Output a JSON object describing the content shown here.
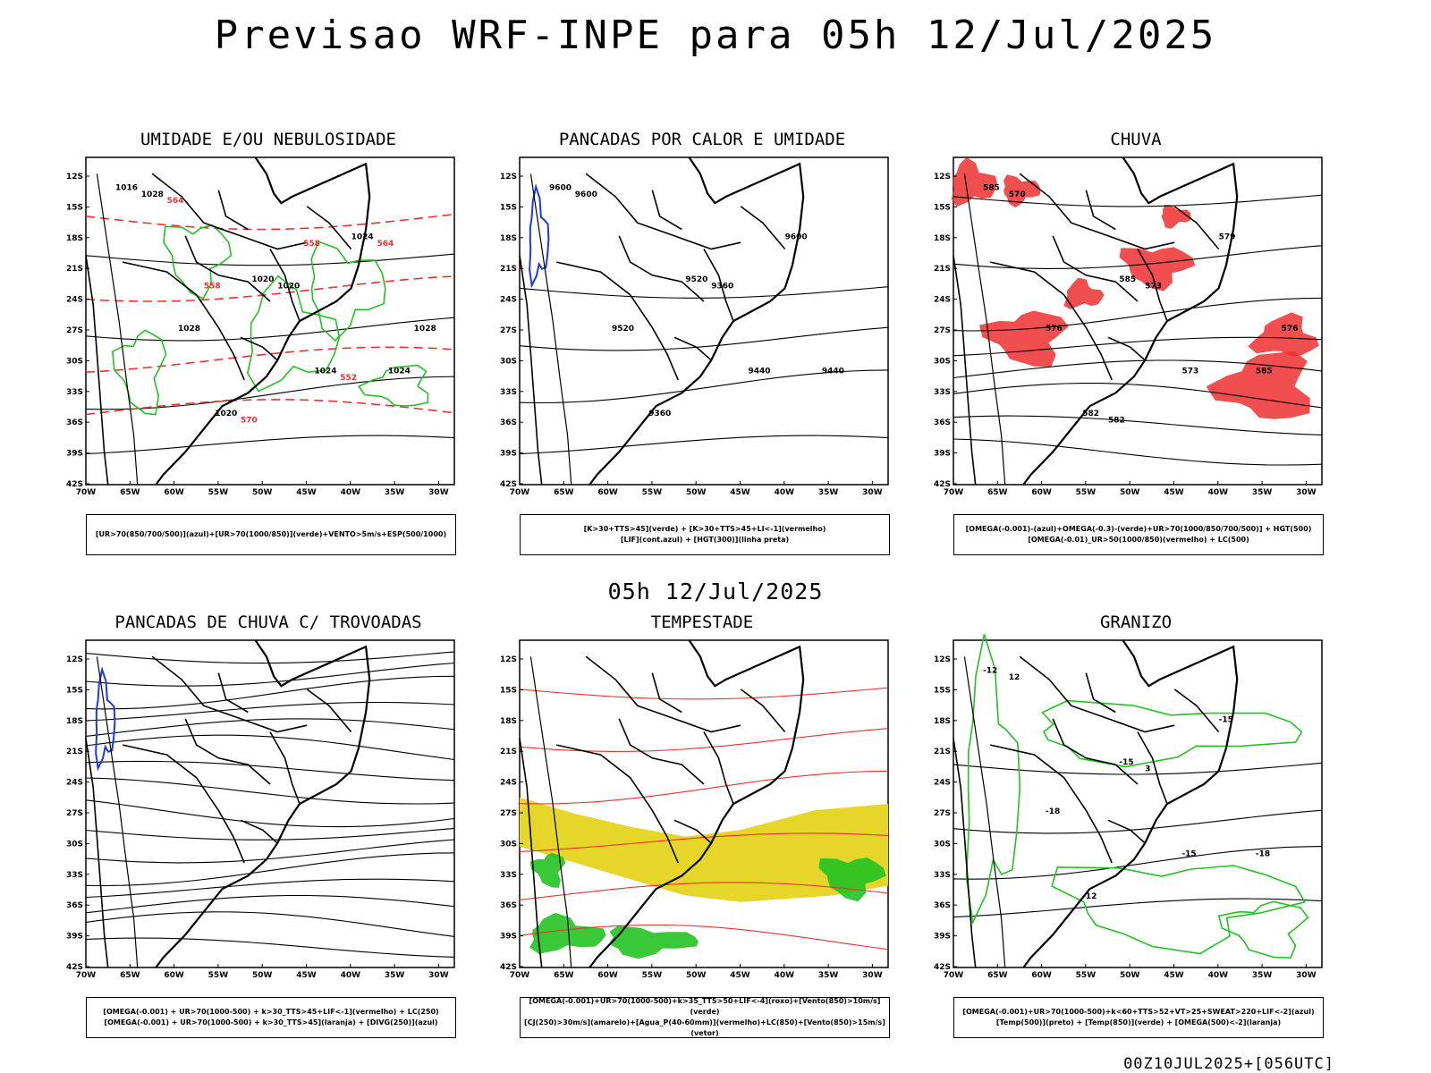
{
  "main_title": "Previsao WRF-INPE  para 05h 12/Jul/2025",
  "mid_time": "05h 12/Jul/2025",
  "footer_run": "00Z10JUL2025+[056UTC]",
  "axes": {
    "lat_labels": [
      "12S",
      "15S",
      "18S",
      "21S",
      "24S",
      "27S",
      "30S",
      "33S",
      "36S",
      "39S",
      "42S"
    ],
    "lon_labels": [
      "70W",
      "65W",
      "60W",
      "55W",
      "50W",
      "45W",
      "40W",
      "35W",
      "30W"
    ]
  },
  "colors": {
    "green": "#22c222",
    "red": "#ee3030",
    "blue": "#1a3be8",
    "yellow": "#e6d62a",
    "black": "#000000"
  },
  "panels": [
    {
      "id": "umidade",
      "title": "UMIDADE E/OU NEBULOSIDADE",
      "legend": [
        "[UR>70(850/700/500)](azul)+[UR>70(1000/850)](verde)+VENTO>5m/s+ESP(500/1000)"
      ],
      "contour_labels": [
        "1016",
        "1020",
        "1024",
        "1020",
        "1024",
        "1028",
        "1024",
        "1028",
        "1020",
        "1028",
        "570",
        "564",
        "558",
        "552",
        "564",
        "558"
      ]
    },
    {
      "id": "pancadas-calor",
      "title": "PANCADAS POR CALOR E UMIDADE",
      "legend": [
        "[K>30+TTS>45](verde) + [K>30+TTS>45+LI<-1](vermelho)",
        "[LIF](cont.azul) + [HGT(300)](linha preta)"
      ],
      "contour_labels": [
        "9600",
        "9520",
        "9440",
        "9360",
        "9600",
        "9520",
        "9440",
        "9600",
        "9360"
      ]
    },
    {
      "id": "chuva",
      "title": "CHUVA",
      "legend": [
        "[OMEGA(-0.001)-(azul)+OMEGA(-0.3)-(verde)+UR>70(1000/850/700/500)] + HGT(500)",
        "[OMEGA(-0.01)_UR>50(1000/850)(vermelho) + LC(500)"
      ],
      "contour_labels": [
        "585",
        "585",
        "585",
        "582",
        "579",
        "576",
        "573",
        "570",
        "573",
        "576",
        "582"
      ]
    },
    {
      "id": "pancadas-trovoadas",
      "title": "PANCADAS DE CHUVA C/ TROVOADAS",
      "legend": [
        "[OMEGA(-0.001) + UR>70(1000-500) + k>30_TTS>45+LIF<-1](vermelho) + LC(250)",
        "[OMEGA(-0.001) + UR>70(1000-500) + k>30_TTS>45](laranja) + [DIVG(250)](azul)"
      ],
      "contour_labels": []
    },
    {
      "id": "tempestade",
      "title": "TEMPESTADE",
      "legend": [
        "[OMEGA(-0.001)+UR>70(1000-500)+k>35_TTS>50+LIF<-4](roxo)+[Vento(850)>10m/s](verde)",
        "[CJ(250)>30m/s](amarelo)+[Agua_P(40-60mm)](vermelho)+LC(850)+[Vento(850)>15m/s](vetor)"
      ],
      "contour_labels": []
    },
    {
      "id": "granizo",
      "title": "GRANIZO",
      "legend": [
        "[OMEGA(-0.001)+UR>70(1000-500)+k<60+TTS>52+VT>25+SWEAT>220+LIF<-2](azul)",
        "[Temp(500)](preto) + [Temp(850)](verde) + [OMEGA(500)<-2](laranja)"
      ],
      "contour_labels": [
        "-12",
        "-15",
        "-18",
        "-12",
        "-15",
        "-18",
        "-15",
        "12",
        "3"
      ]
    }
  ]
}
